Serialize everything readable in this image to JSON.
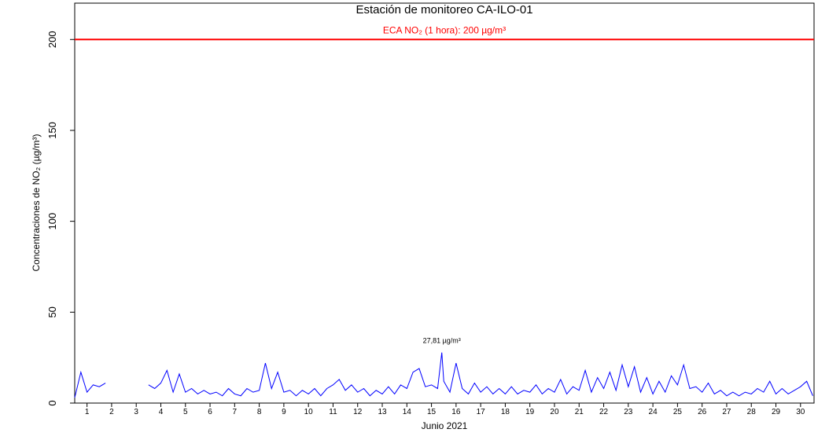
{
  "chart_data": {
    "type": "line",
    "title": "Estación de monitoreo  CA-ILO-01",
    "y_label": "Concentraciones de NO₂ (µg/m³)",
    "x_label": "Junio 2021",
    "peak_label": "27,81 µg/m³",
    "threshold": {
      "value": 200,
      "label": "ECA NO₂ (1 hora): 200 µg/m³",
      "color": "#ff0000"
    },
    "xlim": [
      1,
      31.05
    ],
    "ylim": [
      0,
      220
    ],
    "yticks": [
      0,
      50,
      100,
      150,
      200
    ],
    "xticks": [
      {
        "value": 1.5,
        "label": "1"
      },
      {
        "value": 2.5,
        "label": "2"
      },
      {
        "value": 3.5,
        "label": "3"
      },
      {
        "value": 4.5,
        "label": "4"
      },
      {
        "value": 5.5,
        "label": "5"
      },
      {
        "value": 6.5,
        "label": "6"
      },
      {
        "value": 7.5,
        "label": "7"
      },
      {
        "value": 8.5,
        "label": "8"
      },
      {
        "value": 9.5,
        "label": "9"
      },
      {
        "value": 10.5,
        "label": "10"
      },
      {
        "value": 11.5,
        "label": "11"
      },
      {
        "value": 12.5,
        "label": "12"
      },
      {
        "value": 13.5,
        "label": "13"
      },
      {
        "value": 14.5,
        "label": "14"
      },
      {
        "value": 15.5,
        "label": "15"
      },
      {
        "value": 16.5,
        "label": "16"
      },
      {
        "value": 17.5,
        "label": "17"
      },
      {
        "value": 18.5,
        "label": "18"
      },
      {
        "value": 19.5,
        "label": "19"
      },
      {
        "value": 20.5,
        "label": "20"
      },
      {
        "value": 21.5,
        "label": "21"
      },
      {
        "value": 22.5,
        "label": "22"
      },
      {
        "value": 23.5,
        "label": "23"
      },
      {
        "value": 24.5,
        "label": "24"
      },
      {
        "value": 25.5,
        "label": "25"
      },
      {
        "value": 26.5,
        "label": "26"
      },
      {
        "value": 27.5,
        "label": "27"
      },
      {
        "value": 28.5,
        "label": "28"
      },
      {
        "value": 29.5,
        "label": "29"
      },
      {
        "value": 30.5,
        "label": "30"
      }
    ],
    "x": [
      1,
      1.25,
      1.5,
      1.75,
      2,
      2.25,
      2.5,
      2.75,
      3,
      3.25,
      3.5,
      3.75,
      4,
      4.25,
      4.5,
      4.75,
      5,
      5.25,
      5.5,
      5.75,
      6,
      6.25,
      6.5,
      6.75,
      7,
      7.25,
      7.5,
      7.75,
      8,
      8.25,
      8.5,
      8.75,
      9,
      9.25,
      9.5,
      9.75,
      10,
      10.25,
      10.5,
      10.75,
      11,
      11.25,
      11.5,
      11.75,
      12,
      12.25,
      12.5,
      12.75,
      13,
      13.25,
      13.5,
      13.75,
      14,
      14.25,
      14.5,
      14.75,
      15,
      15.25,
      15.5,
      15.75,
      15.92,
      16,
      16.25,
      16.5,
      16.75,
      17,
      17.25,
      17.5,
      17.75,
      18,
      18.25,
      18.5,
      18.75,
      19,
      19.25,
      19.5,
      19.75,
      20,
      20.25,
      20.5,
      20.75,
      21,
      21.25,
      21.5,
      21.75,
      22,
      22.25,
      22.5,
      22.75,
      23,
      23.25,
      23.5,
      23.75,
      24,
      24.25,
      24.5,
      24.75,
      25,
      25.25,
      25.5,
      25.75,
      26,
      26.25,
      26.5,
      26.75,
      27,
      27.25,
      27.5,
      27.75,
      28,
      28.25,
      28.5,
      28.75,
      29,
      29.25,
      29.5,
      29.75,
      30,
      30.25,
      30.5,
      30.75,
      31
    ],
    "series": [
      {
        "name": "NO₂",
        "color": "#0000ff",
        "values": [
          3,
          17,
          6,
          10,
          9,
          11,
          null,
          null,
          null,
          null,
          null,
          null,
          10,
          8,
          11,
          18,
          6,
          16,
          6,
          8,
          5,
          7,
          5,
          6,
          4,
          8,
          5,
          4,
          8,
          6,
          7,
          22,
          8,
          17,
          6,
          7,
          4,
          7,
          5,
          8,
          4,
          8,
          10,
          13,
          7,
          10,
          6,
          8,
          4,
          7,
          5,
          9,
          5,
          10,
          8,
          17,
          19,
          9,
          10,
          8,
          27.81,
          12,
          6,
          22,
          8,
          5,
          11,
          6,
          9,
          5,
          8,
          5,
          9,
          5,
          7,
          6,
          10,
          5,
          8,
          6,
          13,
          5,
          9,
          7,
          18,
          6,
          14,
          8,
          17,
          7,
          21,
          9,
          20,
          6,
          14,
          5,
          12,
          6,
          15,
          10,
          21,
          8,
          9,
          6,
          11,
          5,
          7,
          4,
          6,
          4,
          6,
          5,
          8,
          6,
          12,
          5,
          8,
          5,
          7,
          9,
          12,
          4
        ]
      }
    ]
  }
}
